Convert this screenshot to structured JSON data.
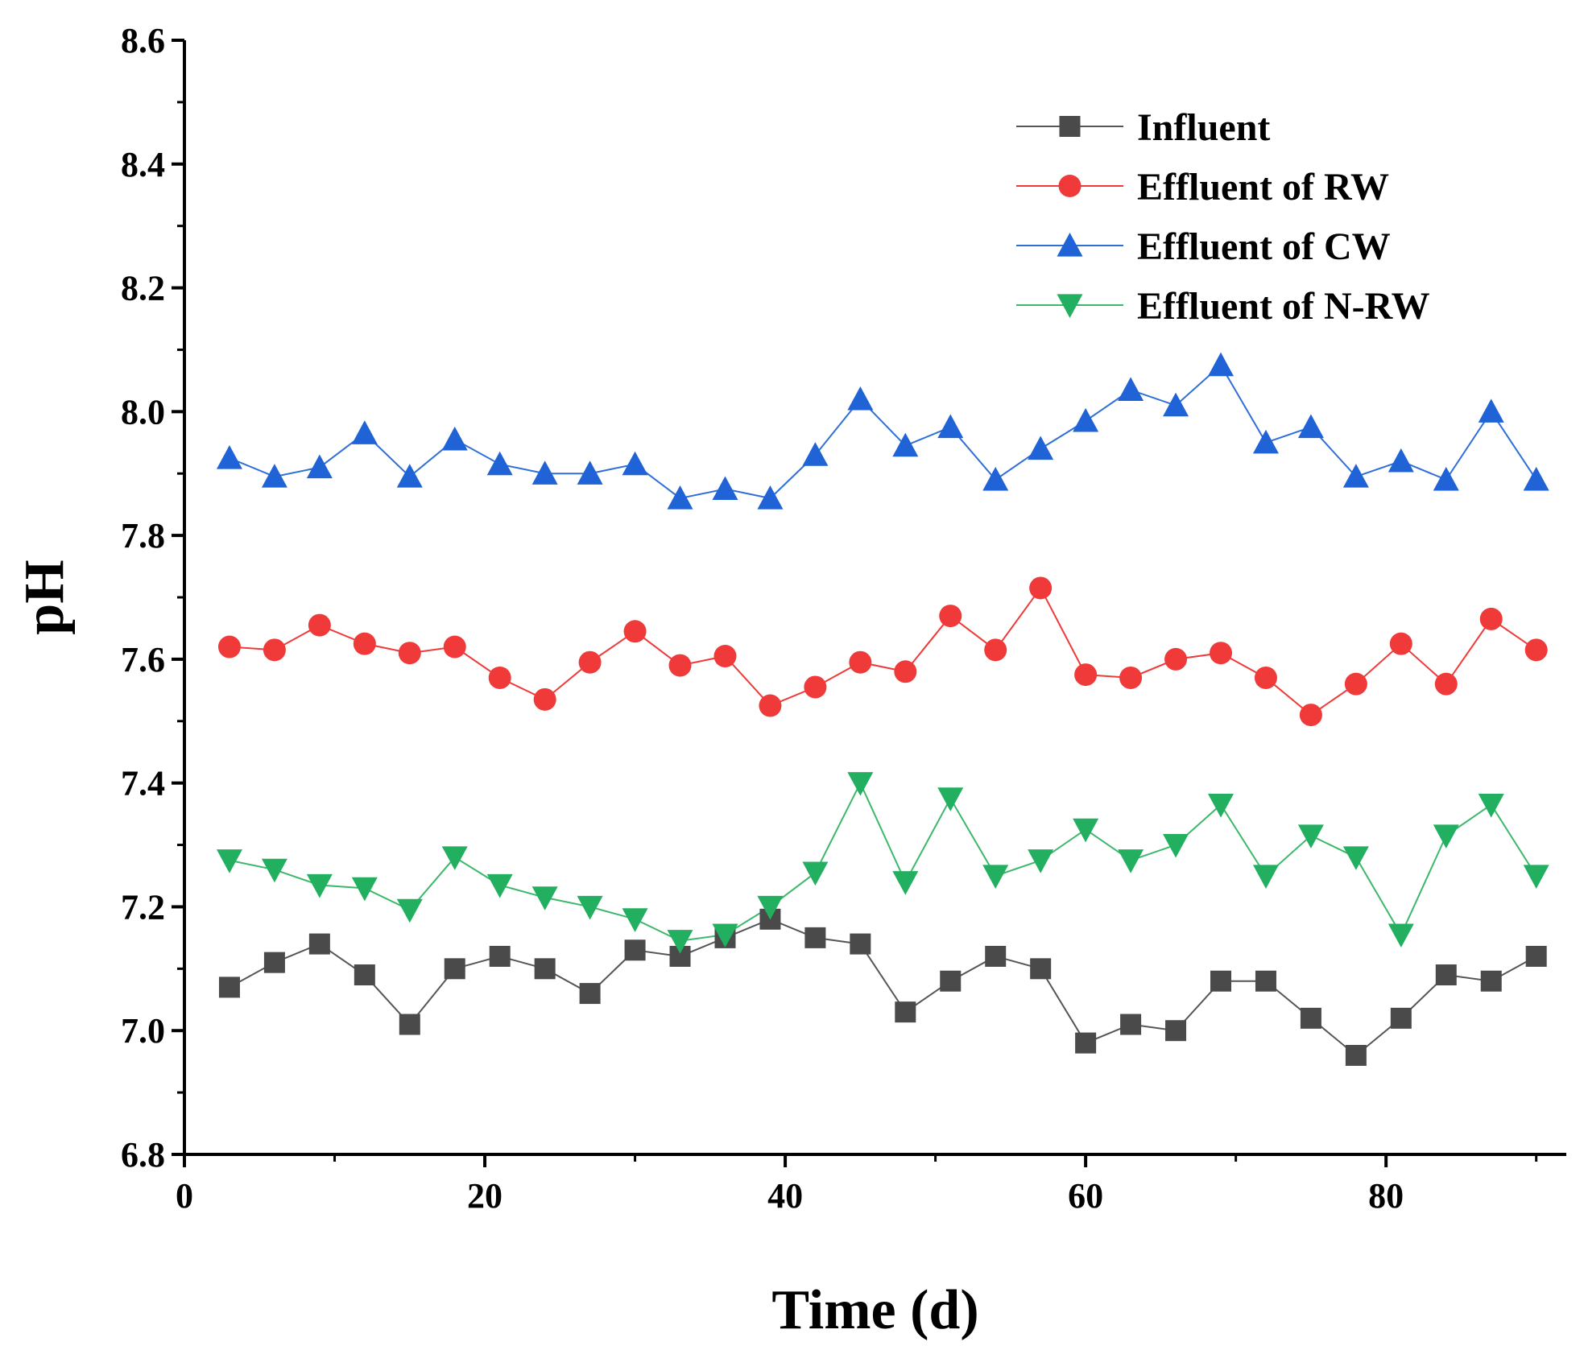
{
  "chart_data": {
    "type": "line",
    "title": "",
    "xlabel": "Time (d)",
    "ylabel": "pH",
    "xlim": [
      0,
      92
    ],
    "ylim": [
      6.8,
      8.6
    ],
    "xticks": [
      0,
      20,
      40,
      60,
      80
    ],
    "xtick_labels": [
      "0",
      "20",
      "40",
      "60",
      "80"
    ],
    "yticks": [
      6.8,
      7.0,
      7.2,
      7.4,
      7.6,
      7.8,
      8.0,
      8.2,
      8.4,
      8.6
    ],
    "ytick_labels": [
      "6.8",
      "7.0",
      "7.2",
      "7.4",
      "7.6",
      "7.8",
      "8.0",
      "8.2",
      "8.4",
      "8.6"
    ],
    "grid": false,
    "legend_position": "top-right",
    "x": [
      3,
      6,
      9,
      12,
      15,
      18,
      21,
      24,
      27,
      30,
      33,
      36,
      39,
      42,
      45,
      48,
      51,
      54,
      57,
      60,
      63,
      66,
      69,
      72,
      75,
      78,
      81,
      84,
      87,
      90
    ],
    "series": [
      {
        "name": "Influent",
        "marker": "square",
        "color": "#4a4a4a",
        "line_color": "#555555",
        "values": [
          7.07,
          7.11,
          7.14,
          7.09,
          7.01,
          7.1,
          7.12,
          7.1,
          7.06,
          7.13,
          7.12,
          7.15,
          7.18,
          7.15,
          7.14,
          7.03,
          7.08,
          7.12,
          7.1,
          6.98,
          7.01,
          7.0,
          7.08,
          7.08,
          7.02,
          6.96,
          7.02,
          7.09,
          7.08,
          7.12
        ]
      },
      {
        "name": "Effluent of RW",
        "marker": "circle",
        "color": "#f03a3a",
        "line_color": "#f03a3a",
        "values": [
          7.62,
          7.615,
          7.655,
          7.625,
          7.61,
          7.62,
          7.57,
          7.535,
          7.595,
          7.645,
          7.59,
          7.605,
          7.525,
          7.555,
          7.595,
          7.58,
          7.67,
          7.615,
          7.715,
          7.575,
          7.57,
          7.6,
          7.61,
          7.57,
          7.51,
          7.56,
          7.625,
          7.56,
          7.665,
          7.615
        ]
      },
      {
        "name": "Effluent of CW",
        "marker": "triangle-up",
        "color": "#1f63d6",
        "line_color": "#2f6fd8",
        "values": [
          7.925,
          7.895,
          7.91,
          7.965,
          7.895,
          7.955,
          7.915,
          7.9,
          7.9,
          7.915,
          7.86,
          7.875,
          7.86,
          7.93,
          8.02,
          7.945,
          7.975,
          7.89,
          7.94,
          7.985,
          8.035,
          8.01,
          8.075,
          7.95,
          7.975,
          7.895,
          7.92,
          7.89,
          8.0,
          7.89
        ]
      },
      {
        "name": "Effluent of N-RW",
        "marker": "triangle-down",
        "color": "#22b060",
        "line_color": "#3cb86a",
        "values": [
          7.275,
          7.26,
          7.235,
          7.23,
          7.195,
          7.28,
          7.235,
          7.215,
          7.2,
          7.18,
          7.145,
          7.155,
          7.2,
          7.255,
          7.4,
          7.24,
          7.375,
          7.25,
          7.275,
          7.325,
          7.275,
          7.3,
          7.365,
          7.25,
          7.315,
          7.28,
          7.155,
          7.315,
          7.365,
          7.25
        ]
      }
    ]
  }
}
